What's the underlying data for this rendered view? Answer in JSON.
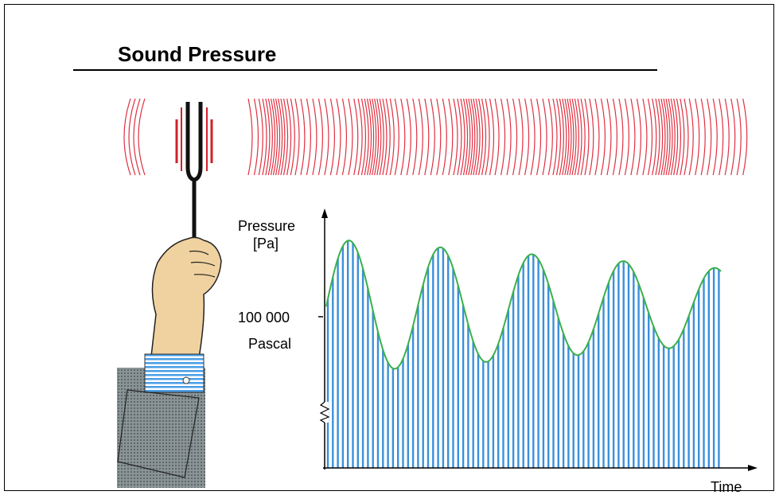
{
  "title": "Sound Pressure",
  "axis": {
    "y_label_line1": "Pressure",
    "y_label_line2": "[Pa]",
    "reference_value": "100 000",
    "reference_unit": "Pascal",
    "x_label": "Time"
  }
}
